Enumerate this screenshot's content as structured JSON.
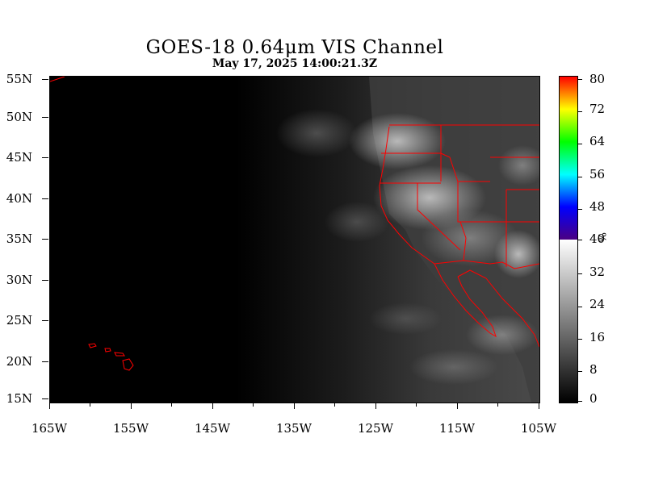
{
  "title": "GOES-18  0.64μm VIS Channel",
  "subtitle": "May 17,  2025 14:00:21.3Z",
  "map": {
    "lat_labels": [
      "55N",
      "50N",
      "45N",
      "40N",
      "35N",
      "30N",
      "25N",
      "20N",
      "15N"
    ],
    "lon_labels": [
      "165W",
      "155W",
      "145W",
      "135W",
      "125W",
      "115W",
      "105W"
    ],
    "lat_range": [
      15,
      55
    ],
    "lon_range": [
      -165,
      -105
    ],
    "border_color": "#ff0000",
    "background_color": "#000000"
  },
  "colorbar": {
    "labels": [
      "80",
      "72",
      "64",
      "56",
      "48",
      "40",
      "32",
      "24",
      "16",
      "8",
      "0"
    ],
    "unit": "%",
    "range": [
      0,
      80
    ],
    "stops": [
      {
        "value": 0,
        "color": "#000000"
      },
      {
        "value": 40,
        "color": "#ffffff"
      },
      {
        "value": 40,
        "color": "#4b0082"
      },
      {
        "value": 48,
        "color": "#0000ff"
      },
      {
        "value": 56,
        "color": "#00ffff"
      },
      {
        "value": 64,
        "color": "#00ff00"
      },
      {
        "value": 72,
        "color": "#ffff00"
      },
      {
        "value": 80,
        "color": "#ff0000"
      }
    ]
  }
}
